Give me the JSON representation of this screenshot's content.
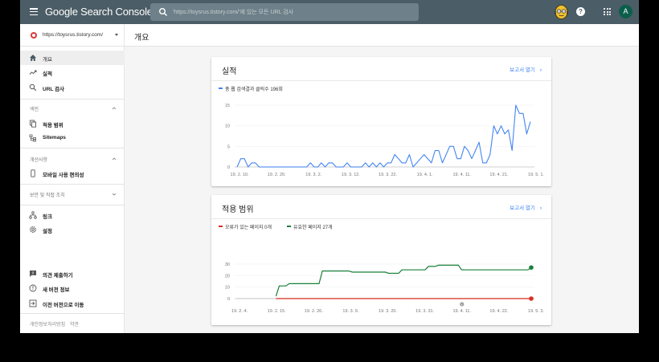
{
  "topbar": {
    "brand": "Google Search Console",
    "search_placeholder": "'https://toysrus.tistory.com/'에 있는 모든 URL 검사",
    "account_initial": "A",
    "help_glyph": "?"
  },
  "sidebar": {
    "property_url": "https://toysrus.tistory.com/",
    "items": [
      {
        "label": "개요",
        "icon": "home-icon",
        "active": true
      },
      {
        "label": "실적",
        "icon": "trending-up-icon"
      },
      {
        "label": "URL 검사",
        "icon": "search-icon"
      }
    ],
    "sections": [
      {
        "label": "색인",
        "expanded": true,
        "items": [
          {
            "label": "적용 범위",
            "icon": "pages-icon"
          },
          {
            "label": "Sitemaps",
            "icon": "sitemap-icon"
          }
        ]
      },
      {
        "label": "개선사항",
        "expanded": true,
        "items": [
          {
            "label": "모바일 사용 편의성",
            "icon": "mobile-icon"
          }
        ]
      },
      {
        "label": "보안 및 직접 조치",
        "expanded": false,
        "items": []
      }
    ],
    "extra_items": [
      {
        "label": "링크",
        "icon": "links-icon"
      },
      {
        "label": "설정",
        "icon": "settings-icon"
      }
    ],
    "bottom_items": [
      {
        "label": "의견 제출하기",
        "icon": "feedback-icon"
      },
      {
        "label": "새 버전 정보",
        "icon": "info-icon"
      },
      {
        "label": "이전 버전으로 이동",
        "icon": "exit-icon"
      }
    ],
    "footer": {
      "privacy": "개인정보처리방침",
      "terms": "약관"
    }
  },
  "main": {
    "page_title": "개요",
    "performance": {
      "title": "실적",
      "link": "보고서 열기",
      "legend": "총 웹 검색결과 클릭수 196회",
      "color": "#4285f4"
    },
    "coverage": {
      "title": "적용 범위",
      "link": "보고서 열기",
      "legend_error": "오류가 있는 페이지 0개",
      "legend_valid": "유효한 페이지 27개",
      "error_color": "#d93025",
      "valid_color": "#188038"
    }
  },
  "chart_data": [
    {
      "type": "line",
      "title": "실적",
      "series": [
        {
          "name": "총 웹 검색결과 클릭수 196회",
          "color": "#4285f4",
          "values": [
            0,
            2,
            2,
            0,
            1,
            1,
            0,
            0,
            0,
            0,
            0,
            0,
            0,
            0,
            0,
            0,
            0,
            0,
            0,
            0,
            1,
            0,
            0,
            1,
            0,
            1,
            1,
            0,
            0,
            0,
            1,
            0,
            0,
            0,
            0,
            1,
            0,
            1,
            0,
            1,
            0,
            1,
            1,
            3,
            2,
            1,
            1,
            3,
            0,
            1,
            2,
            3,
            2,
            1,
            4,
            4,
            1,
            3,
            5,
            5,
            2,
            2,
            5,
            4,
            2,
            4,
            6,
            1,
            1,
            3,
            10,
            8,
            10,
            8,
            9,
            4,
            15,
            13,
            13,
            8,
            11
          ]
        }
      ],
      "x_start": "19. 2. 8.",
      "x_ticks": [
        "19. 2. 10.",
        "19. 2. 20.",
        "19. 3. 2.",
        "19. 3. 12.",
        "19. 3. 22.",
        "19. 4. 1.",
        "19. 4. 11.",
        "19. 4. 21.",
        "19. 5. 1."
      ],
      "y_ticks": [
        0,
        5,
        10,
        15
      ],
      "ylim": [
        0,
        15
      ]
    },
    {
      "type": "line",
      "title": "적용 범위",
      "series": [
        {
          "name": "오류가 있는 페이지 0개",
          "color": "#d93025",
          "points": [
            [
              11,
              0
            ],
            [
              88,
              0
            ]
          ]
        },
        {
          "name": "유효한 페이지 27개",
          "color": "#188038",
          "points": [
            [
              11,
              2
            ],
            [
              12,
              11
            ],
            [
              14,
              11
            ],
            [
              15,
              13
            ],
            [
              24,
              13
            ],
            [
              25,
              24
            ],
            [
              33,
              24
            ],
            [
              34,
              23
            ],
            [
              44,
              23
            ],
            [
              45,
              22
            ],
            [
              48,
              22
            ],
            [
              49,
              25
            ],
            [
              56,
              25
            ],
            [
              57,
              28
            ],
            [
              59,
              28
            ],
            [
              60,
              29
            ],
            [
              66,
              29
            ],
            [
              67,
              25
            ],
            [
              87,
              25
            ],
            [
              88,
              27
            ]
          ]
        }
      ],
      "x_ticks": [
        "19. 2. 4.",
        "19. 2. 15.",
        "19. 2. 26.",
        "19. 3. 9.",
        "19. 3. 20.",
        "19. 3. 31.",
        "19. 4. 11.",
        "19. 4. 22.",
        "19. 5. 3."
      ],
      "y_ticks": [
        0,
        10,
        20,
        30
      ],
      "ylim": [
        0,
        30
      ],
      "annotation": "info marker near 19. 4. 11."
    }
  ]
}
